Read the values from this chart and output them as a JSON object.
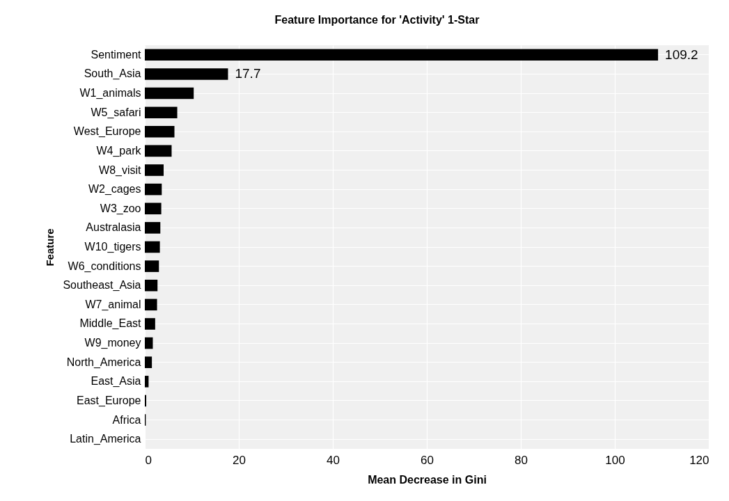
{
  "chart_data": {
    "type": "bar",
    "orientation": "horizontal",
    "title": "Feature Importance for 'Activity' 1-Star",
    "xlabel": "Mean Decrease in Gini",
    "ylabel": "Feature",
    "categories": [
      "Sentiment",
      "South_Asia",
      "W1_animals",
      "W5_safari",
      "West_Europe",
      "W4_park",
      "W8_visit",
      "W2_cages",
      "W3_zoo",
      "Australasia",
      "W10_tigers",
      "W6_conditions",
      "Southeast_Asia",
      "W7_animal",
      "Middle_East",
      "W9_money",
      "North_America",
      "East_Asia",
      "East_Europe",
      "Africa",
      "Latin_America"
    ],
    "values": [
      109.2,
      17.7,
      10.4,
      6.9,
      6.3,
      5.7,
      4.0,
      3.6,
      3.5,
      3.3,
      3.2,
      3.0,
      2.7,
      2.6,
      2.2,
      1.7,
      1.5,
      0.8,
      0.3,
      0.2,
      0
    ],
    "value_labels": [
      "109.2",
      "17.7",
      null,
      null,
      null,
      null,
      null,
      null,
      null,
      null,
      null,
      null,
      null,
      null,
      null,
      null,
      null,
      null,
      null,
      null,
      null
    ],
    "color": "#000000",
    "xlim": [
      0,
      120
    ],
    "xticks": [
      0,
      20,
      40,
      60,
      80,
      100,
      120
    ],
    "grid": true
  }
}
